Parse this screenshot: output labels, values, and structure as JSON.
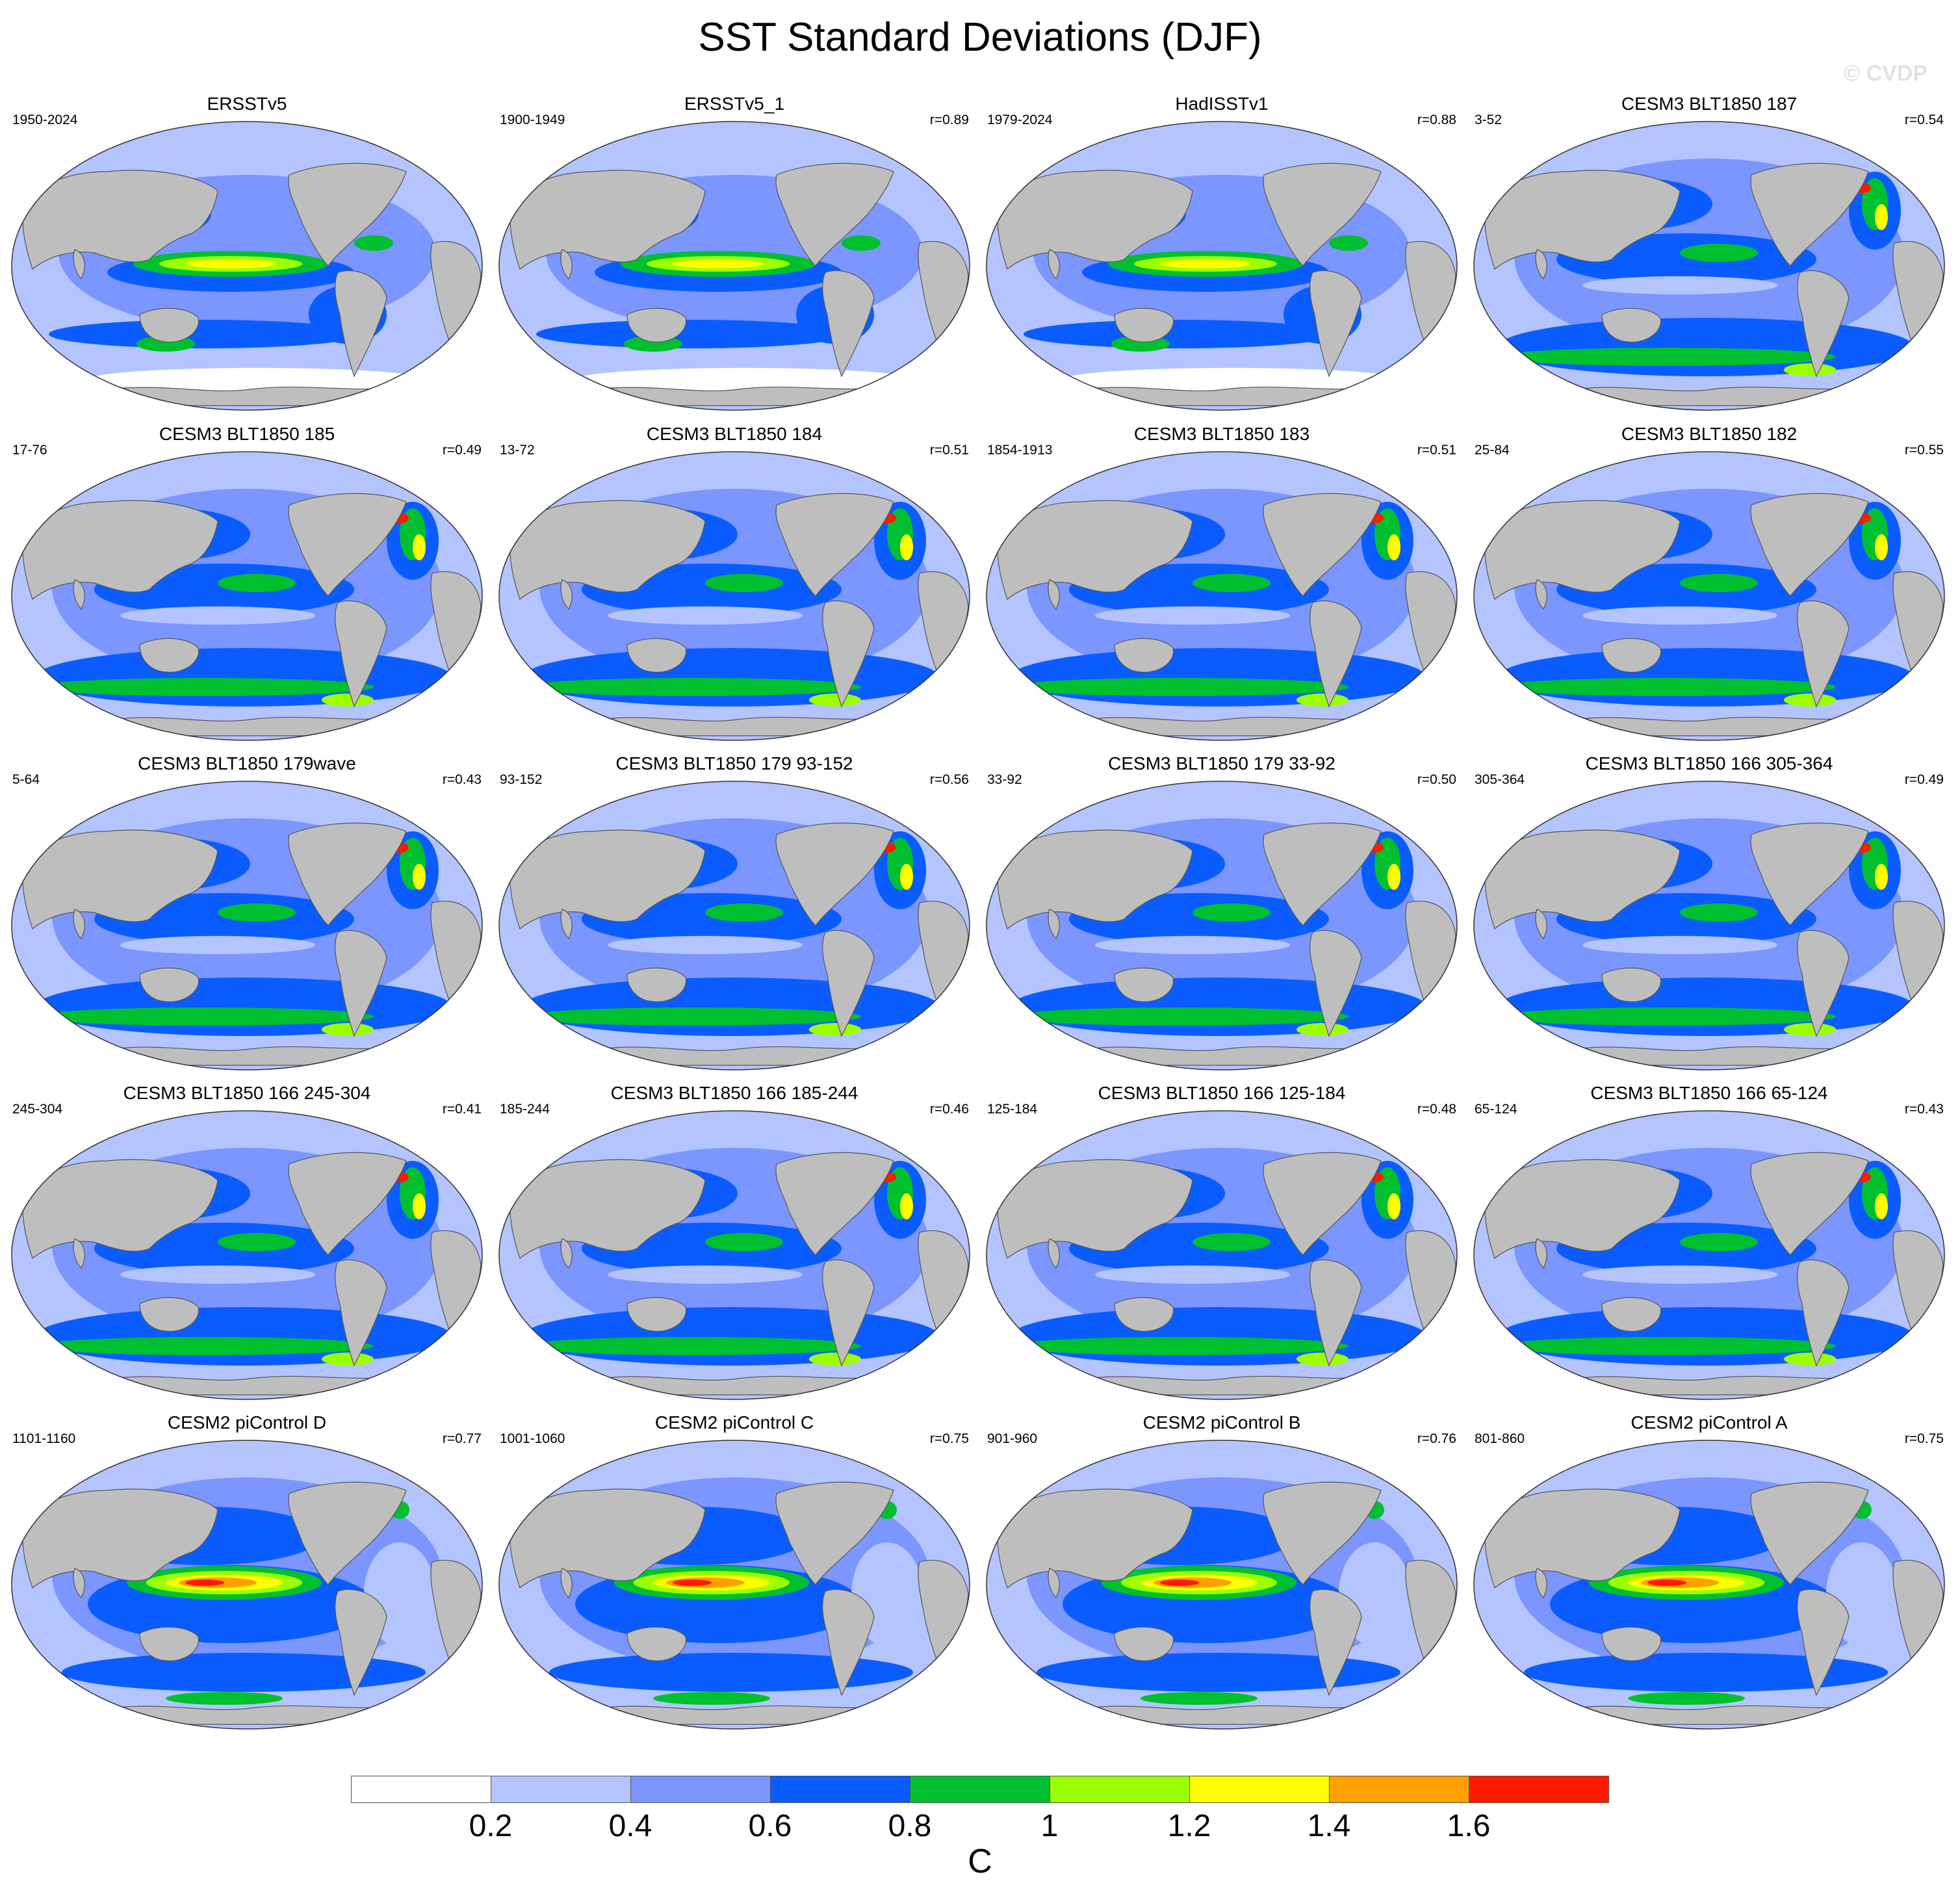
{
  "figure": {
    "title": "SST Standard Deviations (DJF)",
    "watermark": "© CVDP"
  },
  "panels": [
    {
      "title": "ERSSTv5",
      "years": "1950-2024",
      "r": "",
      "pattern": "obs"
    },
    {
      "title": "ERSSTv5_1",
      "years": "1900-1949",
      "r": "r=0.89",
      "pattern": "obs"
    },
    {
      "title": "HadISSTv1",
      "years": "1979-2024",
      "r": "r=0.88",
      "pattern": "obs"
    },
    {
      "title": "CESM3 BLT1850 187",
      "years": "3-52",
      "r": "r=0.54",
      "pattern": "cesm3"
    },
    {
      "title": "CESM3 BLT1850 185",
      "years": "17-76",
      "r": "r=0.49",
      "pattern": "cesm3"
    },
    {
      "title": "CESM3 BLT1850 184",
      "years": "13-72",
      "r": "r=0.51",
      "pattern": "cesm3"
    },
    {
      "title": "CESM3 BLT1850 183",
      "years": "1854-1913",
      "r": "r=0.51",
      "pattern": "cesm3"
    },
    {
      "title": "CESM3 BLT1850 182",
      "years": "25-84",
      "r": "r=0.55",
      "pattern": "cesm3"
    },
    {
      "title": "CESM3 BLT1850 179wave",
      "years": "5-64",
      "r": "r=0.43",
      "pattern": "cesm3"
    },
    {
      "title": "CESM3 BLT1850 179 93-152",
      "years": "93-152",
      "r": "r=0.56",
      "pattern": "cesm3"
    },
    {
      "title": "CESM3 BLT1850 179 33-92",
      "years": "33-92",
      "r": "r=0.50",
      "pattern": "cesm3"
    },
    {
      "title": "CESM3 BLT1850 166 305-364",
      "years": "305-364",
      "r": "r=0.49",
      "pattern": "cesm3"
    },
    {
      "title": "CESM3 BLT1850 166 245-304",
      "years": "245-304",
      "r": "r=0.41",
      "pattern": "cesm3"
    },
    {
      "title": "CESM3 BLT1850 166 185-244",
      "years": "185-244",
      "r": "r=0.46",
      "pattern": "cesm3"
    },
    {
      "title": "CESM3 BLT1850 166 125-184",
      "years": "125-184",
      "r": "r=0.48",
      "pattern": "cesm3"
    },
    {
      "title": "CESM3 BLT1850 166 65-124",
      "years": "65-124",
      "r": "r=0.43",
      "pattern": "cesm3"
    },
    {
      "title": "CESM2 piControl D",
      "years": "1101-1160",
      "r": "r=0.77",
      "pattern": "cesm2"
    },
    {
      "title": "CESM2 piControl C",
      "years": "1001-1060",
      "r": "r=0.75",
      "pattern": "cesm2"
    },
    {
      "title": "CESM2 piControl B",
      "years": "901-960",
      "r": "r=0.76",
      "pattern": "cesm2"
    },
    {
      "title": "CESM2 piControl A",
      "years": "801-860",
      "r": "r=0.75",
      "pattern": "cesm2"
    }
  ],
  "colorbar": {
    "labels": [
      "0.2",
      "0.4",
      "0.6",
      "0.8",
      "1",
      "1.2",
      "1.4",
      "1.6"
    ],
    "colors": [
      "#ffffff",
      "#b4c4ff",
      "#7b96ff",
      "#0a5cff",
      "#00c030",
      "#9cff00",
      "#ffff00",
      "#ffa000",
      "#ff1a00"
    ],
    "units": "C"
  },
  "map_style": {
    "land_color": "#bebebe",
    "ocean_base_color": "#b4c4ff",
    "projection": "robinson-like"
  }
}
